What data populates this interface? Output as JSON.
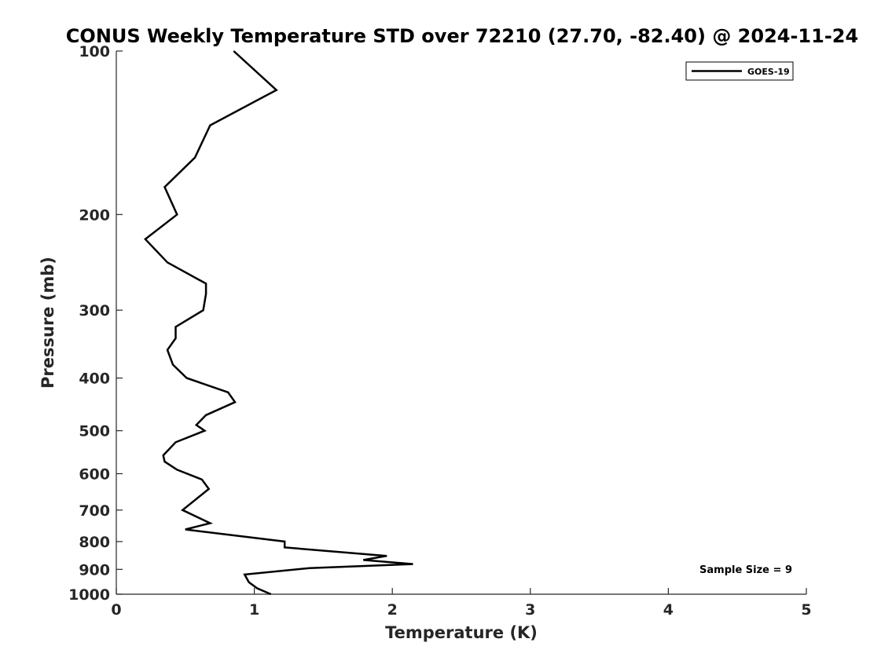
{
  "chart_data": {
    "type": "line",
    "title": "CONUS Weekly Temperature STD over 72210 (27.70, -82.40) @ 2024-11-24",
    "xlabel": "Temperature (K)",
    "ylabel": "Pressure (mb)",
    "xlim": [
      0,
      5
    ],
    "ylim": [
      100,
      1000
    ],
    "y_scale": "log",
    "y_reversed": true,
    "xticks": [
      0,
      1,
      2,
      3,
      4,
      5
    ],
    "yticks": [
      100,
      200,
      300,
      400,
      500,
      600,
      700,
      800,
      900,
      1000
    ],
    "grid": false,
    "legend_position": "top-right",
    "annotation": "Sample Size = 9",
    "series": [
      {
        "name": "GOES-19",
        "color": "#000000",
        "points": [
          {
            "x": 0.85,
            "y": 100
          },
          {
            "x": 1.16,
            "y": 118
          },
          {
            "x": 0.68,
            "y": 137
          },
          {
            "x": 0.57,
            "y": 157
          },
          {
            "x": 0.35,
            "y": 178
          },
          {
            "x": 0.44,
            "y": 200
          },
          {
            "x": 0.21,
            "y": 222
          },
          {
            "x": 0.37,
            "y": 245
          },
          {
            "x": 0.65,
            "y": 268
          },
          {
            "x": 0.65,
            "y": 280
          },
          {
            "x": 0.63,
            "y": 300
          },
          {
            "x": 0.43,
            "y": 322
          },
          {
            "x": 0.43,
            "y": 338
          },
          {
            "x": 0.37,
            "y": 355
          },
          {
            "x": 0.41,
            "y": 378
          },
          {
            "x": 0.51,
            "y": 400
          },
          {
            "x": 0.81,
            "y": 425
          },
          {
            "x": 0.86,
            "y": 443
          },
          {
            "x": 0.65,
            "y": 468
          },
          {
            "x": 0.58,
            "y": 488
          },
          {
            "x": 0.64,
            "y": 500
          },
          {
            "x": 0.43,
            "y": 525
          },
          {
            "x": 0.34,
            "y": 555
          },
          {
            "x": 0.35,
            "y": 570
          },
          {
            "x": 0.44,
            "y": 590
          },
          {
            "x": 0.62,
            "y": 615
          },
          {
            "x": 0.67,
            "y": 640
          },
          {
            "x": 0.48,
            "y": 700
          },
          {
            "x": 0.68,
            "y": 740
          },
          {
            "x": 0.5,
            "y": 760
          },
          {
            "x": 1.22,
            "y": 800
          },
          {
            "x": 1.22,
            "y": 820
          },
          {
            "x": 1.96,
            "y": 850
          },
          {
            "x": 1.79,
            "y": 865
          },
          {
            "x": 2.15,
            "y": 880
          },
          {
            "x": 1.4,
            "y": 895
          },
          {
            "x": 0.93,
            "y": 920
          },
          {
            "x": 0.96,
            "y": 950
          },
          {
            "x": 1.02,
            "y": 975
          },
          {
            "x": 1.12,
            "y": 1000
          }
        ]
      }
    ]
  }
}
